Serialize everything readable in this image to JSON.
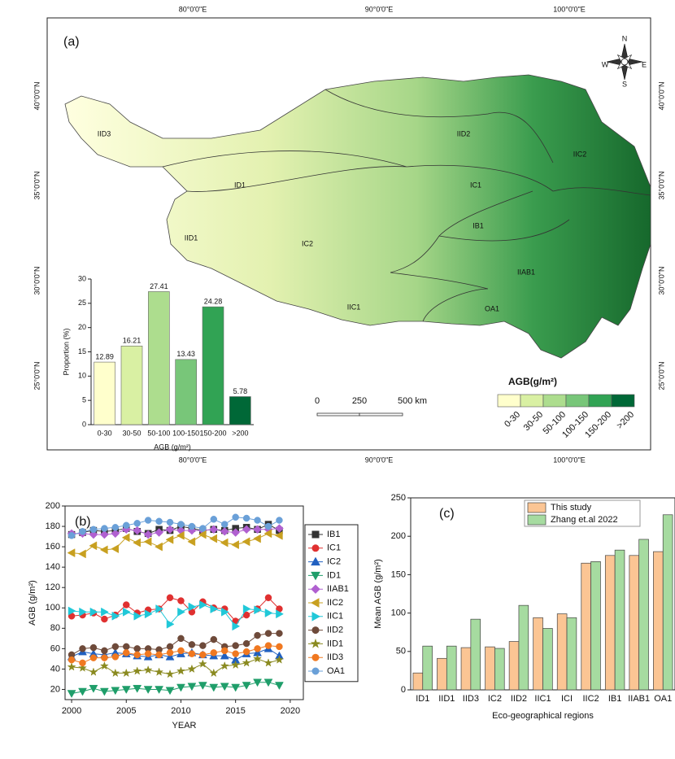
{
  "map": {
    "panel_label": "(a)",
    "lon_labels": [
      "80°0'0\"E",
      "90°0'0\"E",
      "100°0'0\"E"
    ],
    "lat_labels": [
      "40°0'0\"N",
      "35°0'0\"N",
      "30°0'0\"N",
      "25°0'0\"N"
    ],
    "regions": [
      "IID3",
      "IID2",
      "IIC2",
      "ID1",
      "IC1",
      "IB1",
      "IID1",
      "IC2",
      "IIAB1",
      "IIC1",
      "OA1"
    ],
    "compass": [
      "N",
      "S",
      "E",
      "W"
    ],
    "scale_labels": [
      "0",
      "250",
      "500 km"
    ],
    "legend": {
      "title": "AGB(g/m²)",
      "labels": [
        "0-30",
        "30-50",
        "50-100",
        "100-150",
        "150-200",
        ">200"
      ],
      "colors": [
        "#ffffcc",
        "#d9f0a3",
        "#addd8e",
        "#78c679",
        "#31a354",
        "#006837"
      ]
    }
  },
  "chart_data": [
    {
      "type": "bar",
      "xlabel": "AGB (g/m²)",
      "ylabel": "Proportion (%)",
      "categories": [
        "0-30",
        "30-50",
        "50-100",
        "100-150",
        "150-200",
        ">200"
      ],
      "values": [
        12.89,
        16.21,
        27.41,
        13.43,
        24.28,
        5.78
      ],
      "colors": [
        "#ffffcc",
        "#d9f0a3",
        "#addd8e",
        "#78c679",
        "#31a354",
        "#006837"
      ],
      "ylim": [
        0,
        30
      ],
      "yticks": [
        0,
        5,
        10,
        15,
        20,
        25,
        30
      ]
    },
    {
      "type": "line",
      "title": "(b)",
      "xlabel": "YEAR",
      "ylabel": "AGB (g/m²)",
      "x": [
        2000,
        2001,
        2002,
        2003,
        2004,
        2005,
        2006,
        2007,
        2008,
        2009,
        2010,
        2011,
        2012,
        2013,
        2014,
        2015,
        2016,
        2017,
        2018,
        2019
      ],
      "xlim": [
        1999.4,
        2021.2
      ],
      "xticks": [
        2000,
        2005,
        2010,
        2015,
        2020
      ],
      "ylim": [
        10,
        200
      ],
      "yticks": [
        20,
        40,
        60,
        80,
        100,
        120,
        140,
        160,
        180,
        200
      ],
      "series": [
        {
          "name": "IB1",
          "color": "#333333",
          "marker": "square",
          "values": [
            172,
            174,
            176,
            175,
            176,
            178,
            175,
            173,
            177,
            176,
            180,
            178,
            176,
            177,
            176,
            178,
            179,
            177,
            182,
            176
          ]
        },
        {
          "name": "IC1",
          "color": "#e03030",
          "marker": "circle",
          "values": [
            92,
            93,
            95,
            89,
            93,
            103,
            95,
            98,
            99,
            110,
            107,
            96,
            106,
            100,
            99,
            87,
            93,
            99,
            110,
            99
          ]
        },
        {
          "name": "IC2",
          "color": "#2060c0",
          "marker": "triangle",
          "values": [
            52,
            57,
            55,
            54,
            56,
            55,
            53,
            52,
            54,
            52,
            55,
            56,
            54,
            53,
            53,
            49,
            55,
            56,
            60,
            53
          ]
        },
        {
          "name": "ID1",
          "color": "#1f9e6a",
          "marker": "triangle-down",
          "values": [
            16,
            18,
            21,
            18,
            19,
            20,
            21,
            20,
            20,
            19,
            22,
            23,
            24,
            22,
            23,
            22,
            24,
            27,
            27,
            24
          ]
        },
        {
          "name": "IIAB1",
          "color": "#b060d0",
          "marker": "diamond",
          "values": [
            173,
            173,
            172,
            172,
            173,
            177,
            176,
            172,
            174,
            177,
            176,
            176,
            176,
            177,
            175,
            174,
            177,
            177,
            177,
            178
          ]
        },
        {
          "name": "IIC2",
          "color": "#c8a020",
          "marker": "triangle-left",
          "values": [
            154,
            153,
            161,
            157,
            158,
            169,
            164,
            165,
            160,
            167,
            171,
            165,
            172,
            168,
            164,
            162,
            165,
            168,
            173,
            171
          ]
        },
        {
          "name": "IIC1",
          "color": "#20c8d8",
          "marker": "triangle-right",
          "values": [
            97,
            96,
            96,
            96,
            92,
            96,
            92,
            94,
            99,
            84,
            96,
            101,
            103,
            99,
            96,
            82,
            99,
            98,
            95,
            94
          ]
        },
        {
          "name": "IID2",
          "color": "#6e4a3a",
          "marker": "circle",
          "values": [
            54,
            60,
            61,
            58,
            62,
            62,
            60,
            60,
            59,
            62,
            70,
            64,
            63,
            69,
            62,
            63,
            65,
            73,
            75,
            75
          ]
        },
        {
          "name": "IID1",
          "color": "#8a8a20",
          "marker": "star",
          "values": [
            42,
            41,
            37,
            43,
            36,
            36,
            38,
            39,
            37,
            35,
            38,
            40,
            45,
            36,
            43,
            44,
            46,
            50,
            46,
            49
          ]
        },
        {
          "name": "IID3",
          "color": "#f07820",
          "marker": "circle",
          "values": [
            49,
            46,
            51,
            51,
            52,
            56,
            54,
            55,
            54,
            56,
            58,
            55,
            54,
            56,
            58,
            55,
            57,
            60,
            63,
            62
          ]
        },
        {
          "name": "OA1",
          "color": "#6aa0d8",
          "marker": "circle",
          "values": [
            171,
            175,
            177,
            178,
            179,
            181,
            183,
            186,
            185,
            184,
            182,
            180,
            178,
            187,
            182,
            189,
            188,
            186,
            180,
            186
          ]
        }
      ]
    },
    {
      "type": "bar",
      "title": "(c)",
      "xlabel": "Eco-geographical regions",
      "ylabel": "Mean AGB (g/m²)",
      "categories": [
        "ID1",
        "IID1",
        "IID3",
        "IC2",
        "IID2",
        "IIC1",
        "ICI",
        "IIC2",
        "IB1",
        "IIAB1",
        "OA1"
      ],
      "ylim": [
        0,
        250
      ],
      "yticks": [
        0,
        50,
        100,
        150,
        200,
        250
      ],
      "series": [
        {
          "name": "This study",
          "color": "#fbc594",
          "values": [
            22,
            41,
            55,
            56,
            63,
            94,
            99,
            165,
            175,
            175,
            180
          ]
        },
        {
          "name": "Zhang et.al 2022",
          "color": "#a6dba0",
          "values": [
            57,
            57,
            92,
            54,
            110,
            80,
            94,
            167,
            182,
            196,
            228
          ]
        }
      ]
    }
  ]
}
